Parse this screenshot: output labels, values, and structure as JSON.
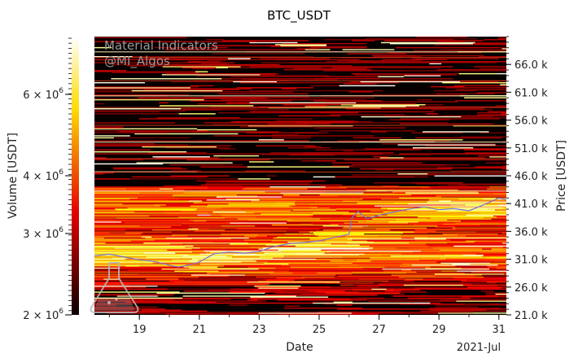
{
  "chart_data": {
    "type": "heatmap",
    "title": "BTC_USDT",
    "xlabel": "Date",
    "ylabel_left": "Volume [USDT]",
    "ylabel_right": "Price [USDT]",
    "x_range": [
      "2021-07-17T12:00",
      "2021-07-31T06:00"
    ],
    "x_ticks": [
      "19",
      "21",
      "23",
      "25",
      "27",
      "29",
      "31"
    ],
    "x_tick_days": [
      19,
      21,
      23,
      25,
      27,
      29,
      31
    ],
    "x_corner_label": "2021-Jul",
    "price_range": [
      21000,
      71000
    ],
    "price_ticks": [
      "21.0 k",
      "26.0 k",
      "31.0 k",
      "36.0 k",
      "41.0 k",
      "46.0 k",
      "51.0 k",
      "56.0 k",
      "61.0 k",
      "66.0 k"
    ],
    "price_tick_values": [
      21000,
      26000,
      31000,
      36000,
      41000,
      46000,
      51000,
      56000,
      61000,
      66000
    ],
    "colorbar": {
      "scale": "log",
      "range": [
        2000000,
        8000000
      ],
      "colormap": "hot",
      "ticks": [
        {
          "value": 2000000,
          "mantissa": "2",
          "exponent": "6"
        },
        {
          "value": 3000000,
          "mantissa": "3",
          "exponent": "6"
        },
        {
          "value": 4000000,
          "mantissa": "4",
          "exponent": "6"
        },
        {
          "value": 6000000,
          "mantissa": "6",
          "exponent": "6"
        }
      ]
    },
    "price_series_color": "#7b6fd6",
    "price_series": [
      {
        "day": 17.5,
        "price": 31600
      },
      {
        "day": 18.0,
        "price": 31900
      },
      {
        "day": 18.5,
        "price": 31400
      },
      {
        "day": 19.0,
        "price": 30900
      },
      {
        "day": 19.5,
        "price": 30600
      },
      {
        "day": 20.0,
        "price": 29900
      },
      {
        "day": 20.3,
        "price": 29600
      },
      {
        "day": 20.7,
        "price": 30000
      },
      {
        "day": 21.0,
        "price": 30500
      },
      {
        "day": 21.5,
        "price": 32000
      },
      {
        "day": 22.0,
        "price": 32300
      },
      {
        "day": 22.5,
        "price": 32100
      },
      {
        "day": 23.0,
        "price": 32400
      },
      {
        "day": 23.5,
        "price": 33300
      },
      {
        "day": 24.0,
        "price": 33800
      },
      {
        "day": 24.5,
        "price": 34000
      },
      {
        "day": 25.0,
        "price": 34300
      },
      {
        "day": 25.5,
        "price": 34900
      },
      {
        "day": 26.0,
        "price": 35500
      },
      {
        "day": 26.1,
        "price": 38500
      },
      {
        "day": 26.3,
        "price": 39600
      },
      {
        "day": 26.6,
        "price": 38300
      },
      {
        "day": 27.0,
        "price": 38900
      },
      {
        "day": 27.5,
        "price": 39500
      },
      {
        "day": 28.0,
        "price": 40000
      },
      {
        "day": 28.5,
        "price": 40400
      },
      {
        "day": 29.0,
        "price": 39900
      },
      {
        "day": 29.5,
        "price": 40100
      },
      {
        "day": 30.0,
        "price": 39700
      },
      {
        "day": 30.5,
        "price": 40800
      },
      {
        "day": 31.0,
        "price": 42000
      },
      {
        "day": 31.25,
        "price": 41700
      }
    ],
    "watermark": [
      "Material Indicators",
      "@MI_Algos"
    ]
  }
}
